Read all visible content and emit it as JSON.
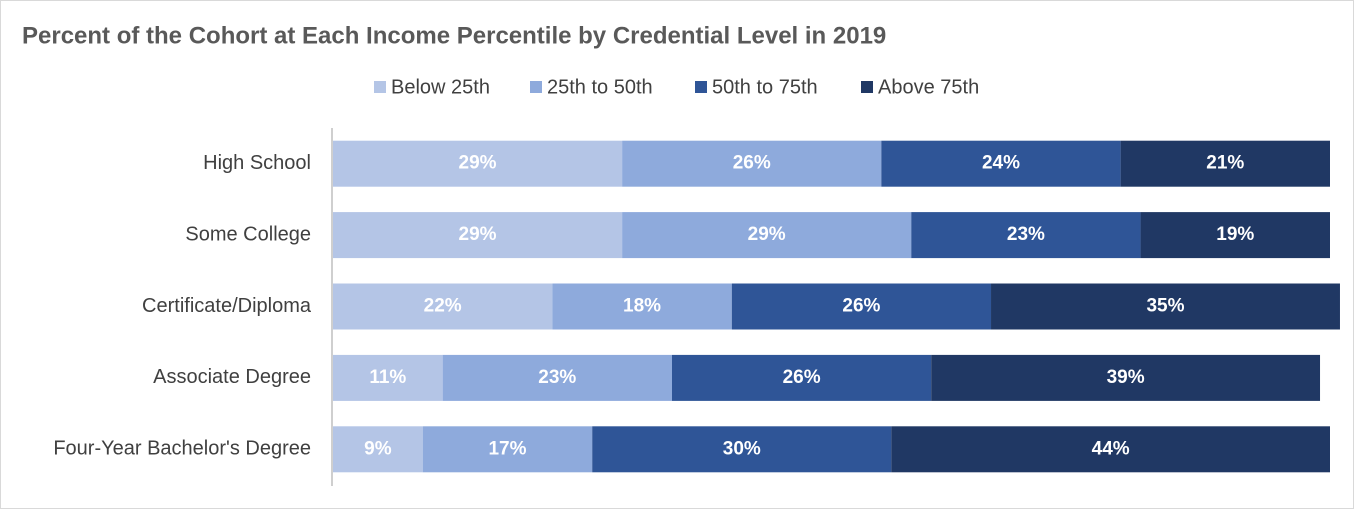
{
  "chart_data": {
    "type": "stacked-bar-horizontal",
    "title": "Percent of the Cohort at Each Income Percentile by Credential Level in 2019",
    "categories": [
      "High School",
      "Some College",
      "Certificate/Diploma",
      "Associate Degree",
      "Four-Year Bachelor's Degree"
    ],
    "xlim": [
      0,
      100
    ],
    "series": [
      {
        "name": "Below 25th",
        "color": "#b4c5e6",
        "values": [
          29,
          29,
          22,
          11,
          9
        ],
        "value_labels": [
          "29%",
          "29%",
          "22%",
          "11%",
          "9%"
        ]
      },
      {
        "name": "25th to 50th",
        "color": "#8eaadc",
        "values": [
          26,
          29,
          18,
          23,
          17
        ],
        "value_labels": [
          "26%",
          "29%",
          "18%",
          "23%",
          "17%"
        ]
      },
      {
        "name": "50th to 75th",
        "color": "#2f5597",
        "values": [
          24,
          23,
          26,
          26,
          30
        ],
        "value_labels": [
          "24%",
          "23%",
          "26%",
          "26%",
          "30%"
        ]
      },
      {
        "name": "Above 75th",
        "color": "#203864",
        "values": [
          21,
          19,
          35,
          39,
          44
        ],
        "value_labels": [
          "21%",
          "19%",
          "35%",
          "39%",
          "44%"
        ]
      }
    ]
  }
}
